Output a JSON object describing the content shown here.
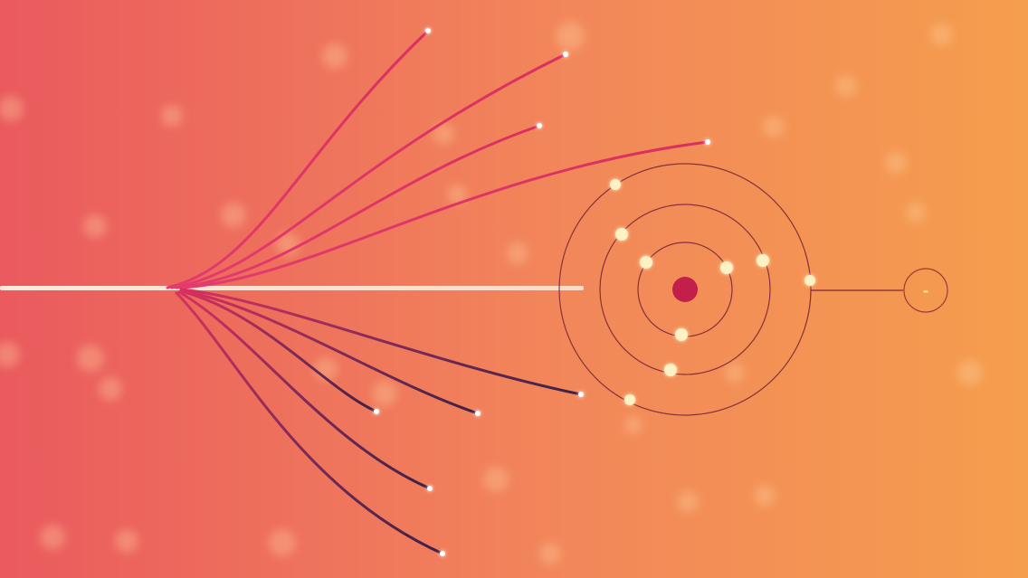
{
  "scene": {
    "description_kind": "abstract-illustration",
    "colors": {
      "background_left": "#ea5a5e",
      "background_mid": "#f2875a",
      "background_right": "#f59e4e",
      "strand_pink": "#e43a6e",
      "strand_dark": "#3c2147",
      "orbit_stroke": "#7a2838",
      "nucleus": "#c21f4b",
      "electron": "#fff1c4",
      "beam": "#ffe2d2",
      "endpoint": "#ffffff",
      "bokeh": "#ffd2a0"
    },
    "ion_label": "-"
  }
}
